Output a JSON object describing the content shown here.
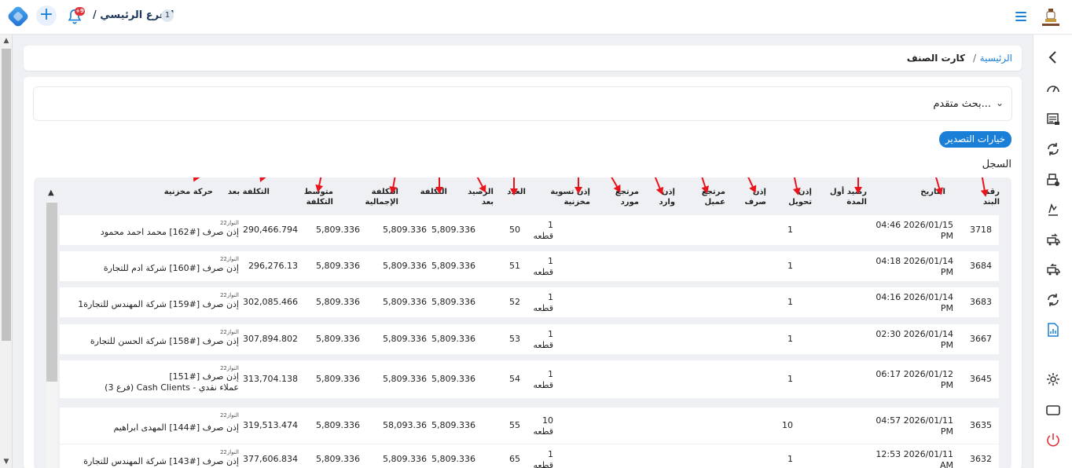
{
  "header": {
    "branch_name": "الفرع الرئيسي /",
    "branch_number": "1",
    "notification_count": "+9"
  },
  "breadcrumb": {
    "home": "الرئيسية",
    "separator": "/",
    "current": "كارت الصنف"
  },
  "advanced_search": {
    "label": "بحث متقدم..."
  },
  "export_button": "خيارات التصدير",
  "log_label": "السجل",
  "table": {
    "headers": {
      "item_no": [
        "رقم",
        "البند"
      ],
      "date": [
        "التاريخ"
      ],
      "opening_balance": [
        "رصيد أول",
        "المدة"
      ],
      "transfer": [
        "إذن",
        "تحويل"
      ],
      "issue": [
        "إذن",
        "صرف"
      ],
      "customer_return": [
        "مرتجع",
        "عميل"
      ],
      "receipt": [
        "إذن",
        "وارد"
      ],
      "supplier_return": [
        "مرتجع",
        "مورد"
      ],
      "stock_adjustment": [
        "إذن تسوية",
        "مخزنية"
      ],
      "count": [
        "العدد"
      ],
      "balance_after": [
        "الرصيد",
        "بعد"
      ],
      "cost": [
        "التكلفة"
      ],
      "total_cost": [
        "التكلفة",
        "الإجمالية"
      ],
      "avg_cost": [
        "متوسط",
        "التكلفة"
      ],
      "cost_after": [
        "التكلفة بعد"
      ],
      "movement": [
        "حركة مخزنية"
      ]
    },
    "rows": [
      {
        "item_no": "3718",
        "date": "04:46 2026/01/15",
        "period": "PM",
        "issue": "1",
        "count": "1",
        "unit": "قطعه",
        "balance_after": "50",
        "cost": "5,809.336",
        "total_cost": "5,809.336",
        "avg_cost": "5,809.336",
        "cost_after": "290,466.794",
        "tag": "النواز22",
        "movement": "إذن صرف [#162] محمد احمد محمود",
        "movement2": ""
      },
      {
        "item_no": "3684",
        "date": "04:18 2026/01/14",
        "period": "PM",
        "issue": "1",
        "count": "1",
        "unit": "قطعه",
        "balance_after": "51",
        "cost": "5,809.336",
        "total_cost": "5,809.336",
        "avg_cost": "5,809.336",
        "cost_after": "296,276.13",
        "tag": "النواز22",
        "movement": "إذن صرف [#160] شركة ادم للتجارة",
        "movement2": ""
      },
      {
        "item_no": "3683",
        "date": "04:16 2026/01/14",
        "period": "PM",
        "issue": "1",
        "count": "1",
        "unit": "قطعه",
        "balance_after": "52",
        "cost": "5,809.336",
        "total_cost": "5,809.336",
        "avg_cost": "5,809.336",
        "cost_after": "302,085.466",
        "tag": "النواز22",
        "movement": "إذن صرف [#159] شركة المهندس للتجارة1",
        "movement2": ""
      },
      {
        "item_no": "3667",
        "date": "02:30 2026/01/14",
        "period": "PM",
        "issue": "1",
        "count": "1",
        "unit": "قطعه",
        "balance_after": "53",
        "cost": "5,809.336",
        "total_cost": "5,809.336",
        "avg_cost": "5,809.336",
        "cost_after": "307,894.802",
        "tag": "النواز22",
        "movement": "إذن صرف [#158] شركة الحسن للتجارة",
        "movement2": ""
      },
      {
        "item_no": "3645",
        "date": "06:17 2026/01/12",
        "period": "PM",
        "issue": "1",
        "count": "1",
        "unit": "قطعه",
        "balance_after": "54",
        "cost": "5,809.336",
        "total_cost": "5,809.336",
        "avg_cost": "5,809.336",
        "cost_after": "313,704.138",
        "tag": "النواز22",
        "movement": "إذن صرف [#151]",
        "movement2": "عملاء نقدي - Cash Clients (فرع 3)"
      },
      {
        "item_no": "3635",
        "date": "04:57 2026/01/11",
        "period": "PM",
        "issue": "10",
        "count": "10",
        "unit": "قطعه",
        "balance_after": "55",
        "cost": "5,809.336",
        "total_cost": "58,093.36",
        "avg_cost": "5,809.336",
        "cost_after": "319,513.474",
        "tag": "النواز22",
        "movement": "إذن صرف [#144] المهدى ابراهيم",
        "movement2": ""
      },
      {
        "item_no": "3632",
        "date": "12:53 2026/01/11",
        "period": "AM",
        "issue": "1",
        "count": "1",
        "unit": "قطعه",
        "balance_after": "65",
        "cost": "5,809.336",
        "total_cost": "5,809.336",
        "avg_cost": "5,809.336",
        "cost_after": "377,606.834",
        "tag": "النواز22",
        "movement": "إذن صرف [#143] شركة المهندس للتجارة",
        "movement2": ""
      }
    ]
  },
  "colors": {
    "accent": "#1a7fd6",
    "annotation_arrow": "#e8141c",
    "badge": "#e0323a"
  },
  "icons": [
    "logo-icon",
    "plus-icon",
    "bell-icon",
    "hamburger-icon",
    "chevron-left-icon",
    "speedometer-icon",
    "invoice-icon",
    "refresh-icon",
    "printer-icon",
    "hand-money-icon",
    "truck-icon",
    "truck-return-icon",
    "sync-icon",
    "chart-doc-icon",
    "gear-icon",
    "window-icon",
    "power-icon"
  ]
}
